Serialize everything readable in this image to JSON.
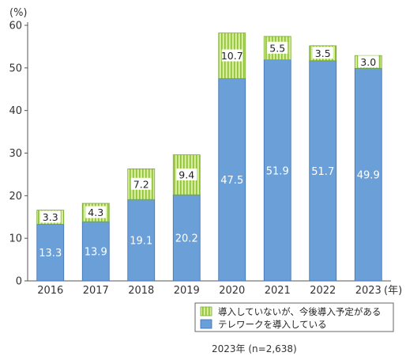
{
  "chart_data": {
    "type": "bar",
    "stacked": true,
    "categories": [
      "2016",
      "2017",
      "2018",
      "2019",
      "2020",
      "2021",
      "2022",
      "2023"
    ],
    "x_unit": "(年)",
    "y_unit": "(%)",
    "ylim": [
      0,
      60
    ],
    "y_ticks": [
      "0",
      "10",
      "20",
      "30",
      "40",
      "50",
      "60"
    ],
    "grid": false,
    "legend_position": "bottom-right",
    "series": [
      {
        "name": "テレワークを導入している",
        "values": [
          13.3,
          13.9,
          19.1,
          20.2,
          47.5,
          51.9,
          51.7,
          49.9
        ],
        "labels": [
          "13.3",
          "13.9",
          "19.1",
          "20.2",
          "47.5",
          "51.9",
          "51.7",
          "49.9"
        ],
        "color": "#6b9fd8"
      },
      {
        "name": "導入していないが、今後導入予定がある",
        "values": [
          3.3,
          4.3,
          7.2,
          9.4,
          10.7,
          5.5,
          3.5,
          3.0
        ],
        "labels": [
          "3.3",
          "4.3",
          "7.2",
          "9.4",
          "10.7",
          "5.5",
          "3.5",
          "3.0"
        ],
        "color": "#c4e27a"
      }
    ],
    "note": "2023年 (n=2,638)"
  }
}
